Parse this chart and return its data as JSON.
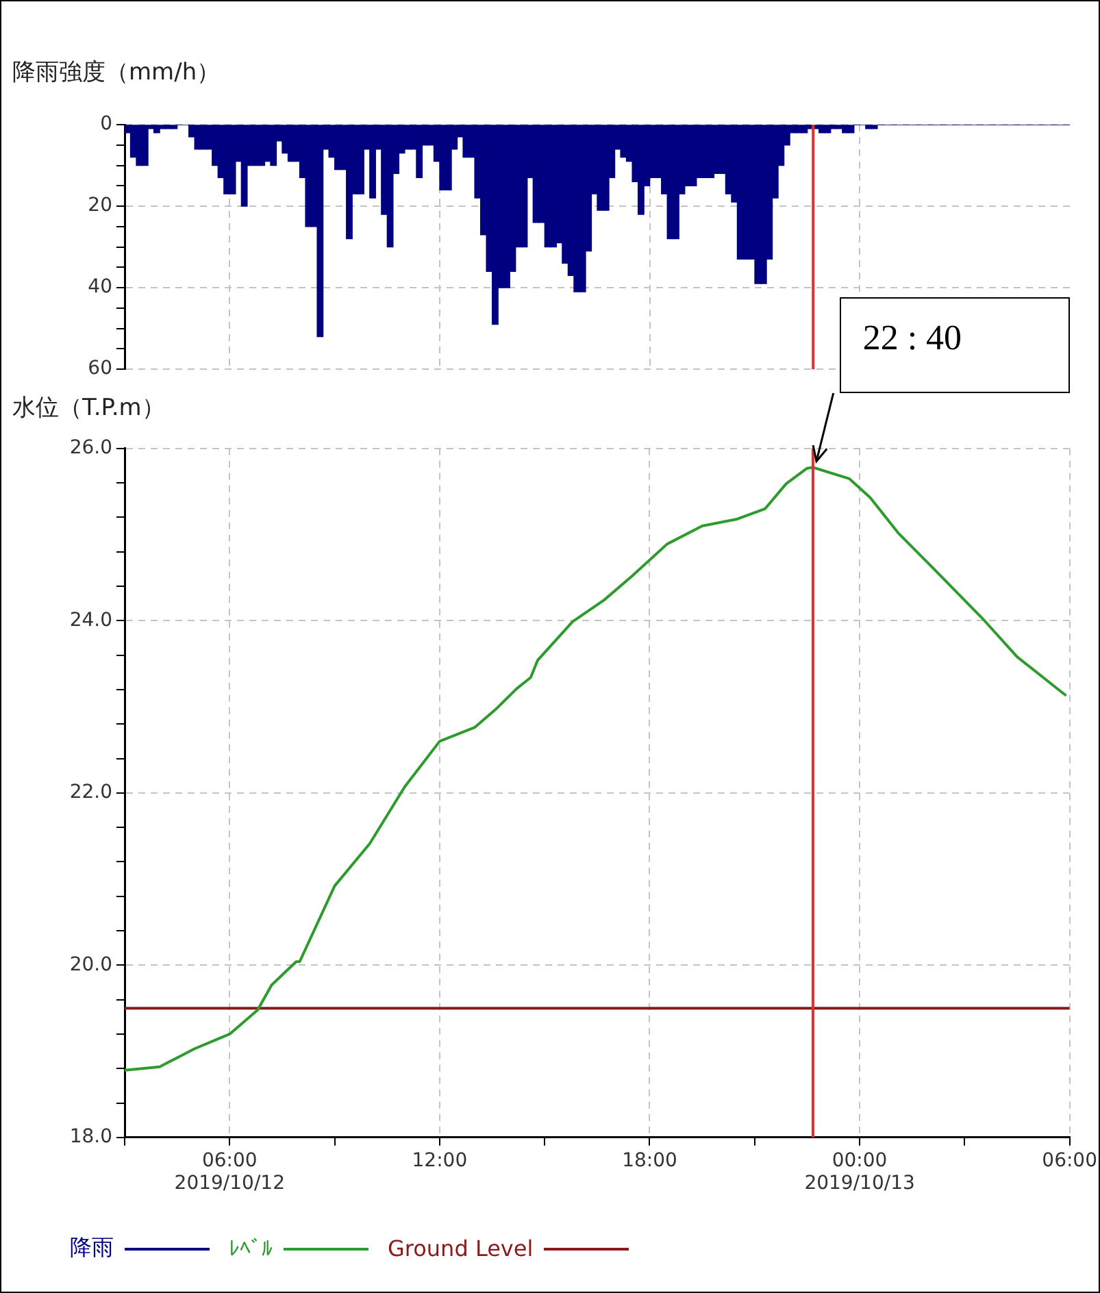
{
  "chart_data": [
    {
      "type": "bar",
      "ylabel": "降雨強度（mm/h）",
      "x": [
        "2019-10-12T03:05",
        "2019-10-12T03:15",
        "2019-10-12T03:25",
        "2019-10-12T03:35",
        "2019-10-12T03:45",
        "2019-10-12T03:55",
        "2019-10-12T04:05",
        "2019-10-12T04:15",
        "2019-10-12T04:25",
        "2019-10-12T04:35",
        "2019-10-12T04:45",
        "2019-10-12T04:55",
        "2019-10-12T05:05",
        "2019-10-12T05:15",
        "2019-10-12T05:25",
        "2019-10-12T05:35",
        "2019-10-12T05:45",
        "2019-10-12T05:55",
        "2019-10-12T06:05",
        "2019-10-12T06:15",
        "2019-10-12T06:25",
        "2019-10-12T06:35",
        "2019-10-12T06:45",
        "2019-10-12T06:55",
        "2019-10-12T07:05",
        "2019-10-12T07:15",
        "2019-10-12T07:25",
        "2019-10-12T07:35",
        "2019-10-12T07:45",
        "2019-10-12T07:55",
        "2019-10-12T08:05",
        "2019-10-12T08:15",
        "2019-10-12T08:25",
        "2019-10-12T08:35",
        "2019-10-12T08:45",
        "2019-10-12T08:55",
        "2019-10-12T09:05",
        "2019-10-12T09:15",
        "2019-10-12T09:25",
        "2019-10-12T09:35",
        "2019-10-12T09:45",
        "2019-10-12T09:55",
        "2019-10-12T10:05",
        "2019-10-12T10:15",
        "2019-10-12T10:25",
        "2019-10-12T10:35",
        "2019-10-12T10:45",
        "2019-10-12T10:55",
        "2019-10-12T11:05",
        "2019-10-12T11:15",
        "2019-10-12T11:25",
        "2019-10-12T11:35",
        "2019-10-12T11:45",
        "2019-10-12T11:55",
        "2019-10-12T12:05",
        "2019-10-12T12:15",
        "2019-10-12T12:25",
        "2019-10-12T12:35",
        "2019-10-12T12:45",
        "2019-10-12T12:55",
        "2019-10-12T13:05",
        "2019-10-12T13:15",
        "2019-10-12T13:25",
        "2019-10-12T13:35",
        "2019-10-12T13:45",
        "2019-10-12T13:55",
        "2019-10-12T14:05",
        "2019-10-12T14:15",
        "2019-10-12T14:25",
        "2019-10-12T14:35",
        "2019-10-12T14:45",
        "2019-10-12T14:55",
        "2019-10-12T15:05",
        "2019-10-12T15:15",
        "2019-10-12T15:25",
        "2019-10-12T15:35",
        "2019-10-12T15:45",
        "2019-10-12T15:55",
        "2019-10-12T16:05",
        "2019-10-12T16:15",
        "2019-10-12T16:25",
        "2019-10-12T16:35",
        "2019-10-12T16:45",
        "2019-10-12T16:55",
        "2019-10-12T17:05",
        "2019-10-12T17:15",
        "2019-10-12T17:25",
        "2019-10-12T17:35",
        "2019-10-12T17:45",
        "2019-10-12T17:55",
        "2019-10-12T18:05",
        "2019-10-12T18:15",
        "2019-10-12T18:25",
        "2019-10-12T18:35",
        "2019-10-12T18:45",
        "2019-10-12T18:55",
        "2019-10-12T19:05",
        "2019-10-12T19:15",
        "2019-10-12T19:25",
        "2019-10-12T19:35",
        "2019-10-12T19:45",
        "2019-10-12T19:55",
        "2019-10-12T20:05",
        "2019-10-12T20:15",
        "2019-10-12T20:25",
        "2019-10-12T20:35",
        "2019-10-12T20:45",
        "2019-10-12T20:55",
        "2019-10-12T21:05",
        "2019-10-12T21:15",
        "2019-10-12T21:25",
        "2019-10-12T21:35",
        "2019-10-12T21:45",
        "2019-10-12T21:55",
        "2019-10-12T22:05",
        "2019-10-12T22:15",
        "2019-10-12T22:25",
        "2019-10-12T22:35",
        "2019-10-12T22:45",
        "2019-10-12T22:55",
        "2019-10-12T23:05",
        "2019-10-12T23:15",
        "2019-10-12T23:25",
        "2019-10-12T23:35",
        "2019-10-12T23:45",
        "2019-10-12T23:55",
        "2019-10-13T00:05",
        "2019-10-13T00:15",
        "2019-10-13T00:25",
        "2019-10-13T00:35",
        "2019-10-13T00:45",
        "2019-10-13T00:55",
        "2019-10-13T01:05",
        "2019-10-13T01:15",
        "2019-10-13T01:25",
        "2019-10-13T01:35",
        "2019-10-13T01:45",
        "2019-10-13T01:55",
        "2019-10-13T02:05",
        "2019-10-13T02:15",
        "2019-10-13T02:25",
        "2019-10-13T02:35",
        "2019-10-13T02:45",
        "2019-10-13T02:55",
        "2019-10-13T03:05",
        "2019-10-13T03:15",
        "2019-10-13T03:25",
        "2019-10-13T03:35",
        "2019-10-13T03:45",
        "2019-10-13T03:55",
        "2019-10-13T04:05",
        "2019-10-13T04:15",
        "2019-10-13T04:25",
        "2019-10-13T04:35",
        "2019-10-13T04:45",
        "2019-10-13T04:55",
        "2019-10-13T05:05",
        "2019-10-13T05:15",
        "2019-10-13T05:25",
        "2019-10-13T05:35",
        "2019-10-13T05:45",
        "2019-10-13T05:55"
      ],
      "series": [
        {
          "name": "降雨",
          "color": "#000080",
          "values": [
            2,
            8,
            10,
            10,
            1,
            2,
            1,
            1,
            1,
            0,
            0,
            3,
            6,
            6,
            6,
            10,
            13,
            17,
            17,
            9,
            20,
            10,
            10,
            10,
            9,
            10,
            4,
            7,
            9,
            9,
            13,
            25,
            25,
            52,
            6,
            8,
            11,
            11,
            28,
            17,
            17,
            6,
            18,
            6,
            22,
            30,
            12,
            7,
            6,
            6,
            13,
            5,
            5,
            9,
            16,
            16,
            6,
            3,
            8,
            8,
            18,
            27,
            36,
            49,
            40,
            40,
            36,
            30,
            30,
            13,
            24,
            24,
            30,
            30,
            29,
            34,
            37,
            41,
            41,
            31,
            17,
            21,
            21,
            13,
            6,
            8,
            9,
            14,
            22,
            15,
            13,
            13,
            17,
            28,
            28,
            17,
            15,
            15,
            13,
            13,
            13,
            12,
            12,
            17,
            19,
            33,
            33,
            33,
            39,
            39,
            33,
            18,
            10,
            5,
            2,
            2,
            2,
            1,
            1,
            2,
            2,
            1,
            1,
            2,
            2,
            0,
            0,
            1,
            1,
            0,
            0,
            0,
            0,
            0,
            0,
            0,
            0,
            0,
            0,
            0,
            0,
            0,
            0,
            0,
            0,
            0,
            0,
            0,
            0,
            0,
            0,
            0,
            0,
            0,
            0,
            0,
            0,
            0,
            0,
            0,
            0,
            0
          ]
        }
      ],
      "xlim": [
        "2019-10-12T03:00",
        "2019-10-13T06:00"
      ],
      "xticks": [
        {
          "value": "2019-10-12T06:00",
          "label": null
        },
        {
          "value": "2019-10-12T12:00",
          "label": null
        },
        {
          "value": "2019-10-12T18:00",
          "label": null
        },
        {
          "value": "2019-10-13T00:00",
          "label": null
        }
      ],
      "ylim": [
        60,
        0
      ],
      "yticks": [
        0,
        {
          "value": 5,
          "label": null
        },
        {
          "value": 10,
          "label": null
        },
        {
          "value": 15,
          "label": null
        },
        20,
        {
          "value": 25,
          "label": null
        },
        {
          "value": 30,
          "label": null
        },
        {
          "value": 35,
          "label": null
        },
        40,
        {
          "value": 45,
          "label": null
        },
        {
          "value": 50,
          "label": null
        },
        {
          "value": 55,
          "label": null
        },
        60
      ],
      "grid": true,
      "tick_labels": "y",
      "legend": "bottom",
      "ref_lines": [
        {
          "axis": "x",
          "value": "2019-10-12T22:40",
          "color": "#e03030"
        }
      ]
    },
    {
      "type": "line",
      "ylabel": "水位（T.P.m）",
      "series": [
        {
          "name": "ﾚﾍﾞﾙ",
          "color": "#2e9b2e",
          "x": [
            "2019-10-12T03:00",
            "2019-10-12T04:00",
            "2019-10-12T05:00",
            "2019-10-12T06:00",
            "2019-10-12T06:48",
            "2019-10-12T07:12",
            "2019-10-12T07:54",
            "2019-10-12T08:00",
            "2019-10-12T09:00",
            "2019-10-12T10:00",
            "2019-10-12T11:00",
            "2019-10-12T12:00",
            "2019-10-12T13:00",
            "2019-10-12T13:36",
            "2019-10-12T14:12",
            "2019-10-12T14:36",
            "2019-10-12T14:48",
            "2019-10-12T15:48",
            "2019-10-12T16:42",
            "2019-10-12T17:30",
            "2019-10-12T18:30",
            "2019-10-12T19:30",
            "2019-10-12T20:30",
            "2019-10-12T21:18",
            "2019-10-12T21:54",
            "2019-10-12T22:30",
            "2019-10-12T22:40",
            "2019-10-12T23:42",
            "2019-10-13T00:18",
            "2019-10-13T01:06",
            "2019-10-13T02:06",
            "2019-10-13T03:30",
            "2019-10-13T04:30",
            "2019-10-13T05:54"
          ],
          "values": [
            18.78,
            18.82,
            19.03,
            19.2,
            19.48,
            19.77,
            20.04,
            20.04,
            20.92,
            21.41,
            22.07,
            22.6,
            22.76,
            22.97,
            23.21,
            23.34,
            23.54,
            23.99,
            24.24,
            24.52,
            24.89,
            25.1,
            25.18,
            25.3,
            25.59,
            25.77,
            25.78,
            25.65,
            25.43,
            25.02,
            24.61,
            24.03,
            23.58,
            23.13
          ]
        },
        {
          "name": "Ground Level",
          "color": "#8b1a1a",
          "x": [
            "2019-10-12T03:00",
            "2019-10-13T06:00"
          ],
          "values": [
            19.5,
            19.5
          ]
        }
      ],
      "xlim": [
        "2019-10-12T03:00",
        "2019-10-13T06:00"
      ],
      "xticks": [
        {
          "value": "2019-10-12T03:00",
          "label": null
        },
        {
          "value": "2019-10-12T06:00",
          "label": "06:00\n2019/10/12"
        },
        {
          "value": "2019-10-12T09:00",
          "label": null
        },
        {
          "value": "2019-10-12T12:00",
          "label": "12:00"
        },
        {
          "value": "2019-10-12T15:00",
          "label": null
        },
        {
          "value": "2019-10-12T18:00",
          "label": "18:00"
        },
        {
          "value": "2019-10-12T21:00",
          "label": null
        },
        {
          "value": "2019-10-13T00:00",
          "label": "00:00\n2019/10/13"
        },
        {
          "value": "2019-10-13T03:00",
          "label": null
        },
        {
          "value": "2019-10-13T06:00",
          "label": "06:00"
        }
      ],
      "ylim": [
        18,
        26
      ],
      "yticks": [
        {
          "value": 18,
          "label": "18.0"
        },
        {
          "value": 18.4,
          "label": null
        },
        {
          "value": 18.8,
          "label": null
        },
        {
          "value": 19.2,
          "label": null
        },
        {
          "value": 19.6,
          "label": null
        },
        {
          "value": 20,
          "label": "20.0"
        },
        {
          "value": 20.4,
          "label": null
        },
        {
          "value": 20.8,
          "label": null
        },
        {
          "value": 21.2,
          "label": null
        },
        {
          "value": 21.6,
          "label": null
        },
        {
          "value": 22,
          "label": "22.0"
        },
        {
          "value": 22.4,
          "label": null
        },
        {
          "value": 22.8,
          "label": null
        },
        {
          "value": 23.2,
          "label": null
        },
        {
          "value": 23.6,
          "label": null
        },
        {
          "value": 24,
          "label": "24.0"
        },
        {
          "value": 24.4,
          "label": null
        },
        {
          "value": 24.8,
          "label": null
        },
        {
          "value": 25.2,
          "label": null
        },
        {
          "value": 25.6,
          "label": null
        },
        {
          "value": 26,
          "label": "26.0"
        }
      ],
      "grid": true,
      "legend": "bottom",
      "ref_lines": [
        {
          "axis": "x",
          "value": "2019-10-12T22:40",
          "color": "#e03030"
        }
      ],
      "annotations": [
        {
          "text": "22 : 40",
          "x": "2019-10-12T22:40",
          "y": 25.78
        }
      ]
    }
  ]
}
